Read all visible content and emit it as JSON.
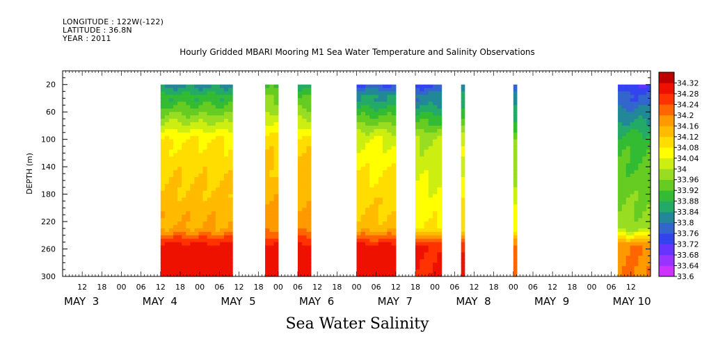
{
  "header": {
    "longitude": "LONGITUDE : 122W(-122)",
    "latitude": "LATITUDE : 36.8N",
    "year": "YEAR : 2011"
  },
  "chart_data": {
    "type": "heatmap",
    "title": "Hourly Gridded MBARI Mooring M1 Sea Water Temperature and Salinity Observations",
    "bottom_title": "Sea Water Salinity",
    "ylabel": "DEPTH (m)",
    "xlabel": "",
    "ylim": [
      300,
      0
    ],
    "y_ticks": [
      20,
      60,
      100,
      140,
      180,
      220,
      260,
      300
    ],
    "x_hour_ticks": [
      "12",
      "18",
      "00",
      "06",
      "12",
      "18",
      "00",
      "06",
      "12",
      "18",
      "00",
      "06",
      "12",
      "18",
      "00",
      "06",
      "12",
      "18",
      "00",
      "06",
      "12",
      "18",
      "00",
      "06",
      "12",
      "18",
      "00",
      "06",
      "12"
    ],
    "x_day_labels": [
      "MAY  3",
      "MAY  4",
      "MAY  5",
      "MAY  6",
      "MAY  7",
      "MAY  8",
      "MAY  9",
      "MAY 10"
    ],
    "colorbar": {
      "levels": [
        "33.6",
        "33.64",
        "33.68",
        "33.72",
        "33.76",
        "33.8",
        "33.84",
        "33.88",
        "33.92",
        "33.96",
        "34",
        "34.04",
        "34.08",
        "34.12",
        "34.16",
        "34.2",
        "34.24",
        "34.28",
        "34.32"
      ],
      "colors": [
        "#cc33ff",
        "#9933ff",
        "#6633ff",
        "#3344ee",
        "#3366cc",
        "#228899",
        "#22aa66",
        "#33bb33",
        "#66cc22",
        "#99dd22",
        "#ccee11",
        "#ffff00",
        "#ffdd00",
        "#ffbb00",
        "#ff9900",
        "#ff6600",
        "#ff3300",
        "#ee1100",
        "#bb0000"
      ]
    },
    "data_segments": [
      {
        "label": "May 4 06 - May 5 04",
        "x_start_hours": 30,
        "x_end_hours": 52,
        "surface": 33.82,
        "sub_surface": 34.08,
        "mid": 34.16,
        "deep": 34.3
      },
      {
        "label": "May 5 14 - May 5 18",
        "x_start_hours": 62,
        "x_end_hours": 66,
        "surface": 33.9,
        "sub_surface": 34.1,
        "mid": 34.18,
        "deep": 34.3
      },
      {
        "label": "May 5 24 - May 6 04",
        "x_start_hours": 72,
        "x_end_hours": 76,
        "surface": 33.84,
        "sub_surface": 34.1,
        "mid": 34.18,
        "deep": 34.3
      },
      {
        "label": "May 6 18 - May 7 06",
        "x_start_hours": 90,
        "x_end_hours": 102,
        "surface": 33.76,
        "sub_surface": 34.04,
        "mid": 34.14,
        "deep": 34.3
      },
      {
        "label": "May 7 12 - May 7 20",
        "x_start_hours": 108,
        "x_end_hours": 116,
        "surface": 33.74,
        "sub_surface": 34.0,
        "mid": 34.08,
        "deep": 34.28
      },
      {
        "label": "May 8 02",
        "x_start_hours": 122,
        "x_end_hours": 123,
        "surface": 33.8,
        "sub_surface": 34.02,
        "mid": 34.1,
        "deep": 34.28
      },
      {
        "label": "May 8 18",
        "x_start_hours": 138,
        "x_end_hours": 139,
        "surface": 33.76,
        "sub_surface": 33.96,
        "mid": 34.06,
        "deep": 34.22
      },
      {
        "label": "May 10 02 - May 10 12",
        "x_start_hours": 170,
        "x_end_hours": 180,
        "surface": 33.72,
        "sub_surface": 33.9,
        "mid": 33.98,
        "deep": 34.2
      }
    ]
  }
}
